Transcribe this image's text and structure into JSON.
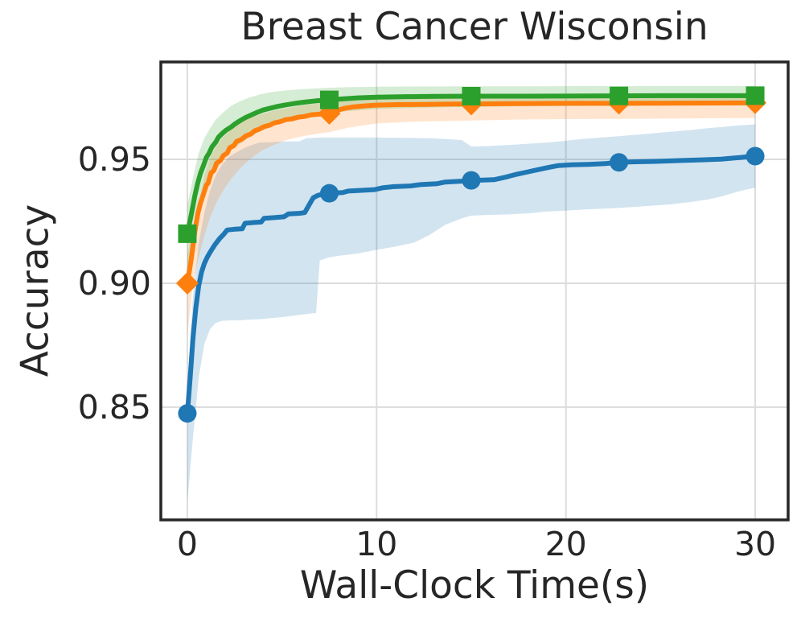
{
  "figure": {
    "background": "#ffffff"
  },
  "chart_data": {
    "type": "line",
    "title": "Breast Cancer Wisconsin",
    "xlabel": "Wall-Clock Time(s)",
    "ylabel": "Accuracy",
    "xlim": [
      -1.4,
      31.74
    ],
    "ylim": [
      0.8045,
      0.9893
    ],
    "grid": true,
    "legend_position": "none",
    "x_ticks": {
      "values": [
        0,
        10,
        20,
        30
      ],
      "labels": [
        "0",
        "10",
        "20",
        "30"
      ]
    },
    "y_ticks": {
      "values": [
        0.85,
        0.9,
        0.95
      ],
      "labels": [
        "0.85",
        "0.90",
        "0.95"
      ]
    },
    "style": {
      "grid_color": "#dcdcdc",
      "spine_color": "#262626",
      "text_color": "#262626",
      "band_opacity": 0.2,
      "line_width": 6
    },
    "series": [
      {
        "name": "blue-circle-series",
        "color": "#1f77b4",
        "marker": "circle",
        "markers": [
          [
            0,
            0.8475
          ],
          [
            7.5,
            0.9363
          ],
          [
            15,
            0.9415
          ],
          [
            22.8,
            0.9488
          ],
          [
            30,
            0.9513
          ]
        ],
        "line": [
          [
            0,
            0.8475
          ],
          [
            0.15,
            0.862
          ],
          [
            0.3,
            0.878
          ],
          [
            0.45,
            0.89
          ],
          [
            0.6,
            0.899
          ],
          [
            0.75,
            0.9045
          ],
          [
            0.9,
            0.908
          ],
          [
            1.05,
            0.9105
          ],
          [
            1.2,
            0.9125
          ],
          [
            1.45,
            0.9155
          ],
          [
            1.7,
            0.918
          ],
          [
            1.95,
            0.92
          ],
          [
            2.1,
            0.9215
          ],
          [
            2.5,
            0.9218
          ],
          [
            2.9,
            0.922
          ],
          [
            3.05,
            0.9242
          ],
          [
            3.5,
            0.9245
          ],
          [
            3.9,
            0.9247
          ],
          [
            4.05,
            0.9262
          ],
          [
            4.6,
            0.9265
          ],
          [
            5.1,
            0.9268
          ],
          [
            5.35,
            0.928
          ],
          [
            5.9,
            0.9282
          ],
          [
            6.2,
            0.9285
          ],
          [
            6.35,
            0.9305
          ],
          [
            6.5,
            0.9325
          ],
          [
            6.65,
            0.9345
          ],
          [
            6.9,
            0.9355
          ],
          [
            7.2,
            0.936
          ],
          [
            7.5,
            0.9363
          ],
          [
            8.2,
            0.9366
          ],
          [
            8.5,
            0.9372
          ],
          [
            9.2,
            0.9375
          ],
          [
            9.9,
            0.9378
          ],
          [
            10.3,
            0.9385
          ],
          [
            10.9,
            0.939
          ],
          [
            11.8,
            0.9393
          ],
          [
            12.3,
            0.9398
          ],
          [
            13.2,
            0.9402
          ],
          [
            13.6,
            0.9408
          ],
          [
            14.5,
            0.9412
          ],
          [
            15,
            0.9415
          ],
          [
            16.2,
            0.9418
          ],
          [
            16.8,
            0.9428
          ],
          [
            17.3,
            0.9438
          ],
          [
            17.9,
            0.9448
          ],
          [
            18.5,
            0.9458
          ],
          [
            19.1,
            0.9468
          ],
          [
            19.6,
            0.9475
          ],
          [
            20.3,
            0.9478
          ],
          [
            21.2,
            0.948
          ],
          [
            22.1,
            0.9483
          ],
          [
            22.8,
            0.9488
          ],
          [
            23.5,
            0.949
          ],
          [
            24.8,
            0.9492
          ],
          [
            26,
            0.9495
          ],
          [
            27.2,
            0.9498
          ],
          [
            28.2,
            0.9501
          ],
          [
            28.8,
            0.9505
          ],
          [
            29.3,
            0.9508
          ],
          [
            29.7,
            0.9512
          ],
          [
            30,
            0.9513
          ]
        ],
        "band": [
          [
            0,
            0.812,
            0.86
          ],
          [
            0.3,
            0.838,
            0.895
          ],
          [
            0.6,
            0.862,
            0.9165
          ],
          [
            0.9,
            0.8755,
            0.9285
          ],
          [
            1.2,
            0.8815,
            0.9375
          ],
          [
            1.5,
            0.884,
            0.9435
          ],
          [
            1.8,
            0.8848,
            0.9475
          ],
          [
            2.2,
            0.885,
            0.951
          ],
          [
            2.7,
            0.885,
            0.9533
          ],
          [
            3.2,
            0.8853,
            0.9553
          ],
          [
            3.8,
            0.8855,
            0.9568
          ],
          [
            4.5,
            0.886,
            0.957
          ],
          [
            5.2,
            0.8865,
            0.9572
          ],
          [
            5.9,
            0.8872,
            0.9572
          ],
          [
            6.3,
            0.8876,
            0.9585
          ],
          [
            6.8,
            0.888,
            0.9587
          ],
          [
            7.0,
            0.9092,
            0.9588
          ],
          [
            7.5,
            0.9105,
            0.9588
          ],
          [
            8.2,
            0.9113,
            0.9588
          ],
          [
            9,
            0.912,
            0.9588
          ],
          [
            10,
            0.9135,
            0.9588
          ],
          [
            11,
            0.9148,
            0.9587
          ],
          [
            12,
            0.9165,
            0.9586
          ],
          [
            12.8,
            0.9195,
            0.9585
          ],
          [
            13.6,
            0.9235,
            0.9582
          ],
          [
            14.5,
            0.9262,
            0.9578
          ],
          [
            15,
            0.9273,
            0.9552
          ],
          [
            16,
            0.9276,
            0.9554
          ],
          [
            17,
            0.9278,
            0.9558
          ],
          [
            18,
            0.9282,
            0.9563
          ],
          [
            19,
            0.929,
            0.9568
          ],
          [
            20,
            0.9293,
            0.9575
          ],
          [
            21,
            0.9298,
            0.9583
          ],
          [
            22.5,
            0.9303,
            0.9592
          ],
          [
            24,
            0.931,
            0.9601
          ],
          [
            25.5,
            0.9318,
            0.9611
          ],
          [
            26.5,
            0.9327,
            0.9618
          ],
          [
            27.5,
            0.9338,
            0.9626
          ],
          [
            28.3,
            0.9352,
            0.9631
          ],
          [
            29,
            0.9368,
            0.9636
          ],
          [
            29.5,
            0.9378,
            0.9639
          ],
          [
            30,
            0.9385,
            0.9641
          ]
        ]
      },
      {
        "name": "orange-diamond-series",
        "color": "#ff7f0e",
        "marker": "diamond",
        "markers": [
          [
            0,
            0.9
          ],
          [
            7.5,
            0.9685
          ],
          [
            15,
            0.9723
          ],
          [
            22.8,
            0.9726
          ],
          [
            30,
            0.9728
          ]
        ],
        "line": [
          [
            0,
            0.9
          ],
          [
            0.2,
            0.9095
          ],
          [
            0.4,
            0.921
          ],
          [
            0.55,
            0.928
          ],
          [
            0.7,
            0.9325
          ],
          [
            0.85,
            0.936
          ],
          [
            1.0,
            0.9395
          ],
          [
            1.1,
            0.9405
          ],
          [
            1.25,
            0.9445
          ],
          [
            1.4,
            0.9455
          ],
          [
            1.55,
            0.9485
          ],
          [
            1.75,
            0.9495
          ],
          [
            1.9,
            0.9515
          ],
          [
            2.1,
            0.9525
          ],
          [
            2.25,
            0.9548
          ],
          [
            2.45,
            0.9555
          ],
          [
            2.6,
            0.9572
          ],
          [
            2.85,
            0.958
          ],
          [
            3.1,
            0.9595
          ],
          [
            3.35,
            0.9602
          ],
          [
            3.55,
            0.9615
          ],
          [
            3.8,
            0.9622
          ],
          [
            4.05,
            0.9632
          ],
          [
            4.35,
            0.9638
          ],
          [
            4.6,
            0.9647
          ],
          [
            4.9,
            0.9652
          ],
          [
            5.2,
            0.966
          ],
          [
            5.5,
            0.9663
          ],
          [
            5.85,
            0.967
          ],
          [
            6.2,
            0.9673
          ],
          [
            6.55,
            0.968
          ],
          [
            6.9,
            0.9682
          ],
          [
            7.2,
            0.9684
          ],
          [
            7.5,
            0.9685
          ],
          [
            7.9,
            0.9697
          ],
          [
            8.3,
            0.9706
          ],
          [
            8.8,
            0.9712
          ],
          [
            9.4,
            0.9716
          ],
          [
            10,
            0.9719
          ],
          [
            11,
            0.9721
          ],
          [
            12.5,
            0.9722
          ],
          [
            14,
            0.9723
          ],
          [
            15,
            0.9723
          ],
          [
            17,
            0.9725
          ],
          [
            20,
            0.9726
          ],
          [
            23,
            0.9726
          ],
          [
            26,
            0.9727
          ],
          [
            30,
            0.9728
          ]
        ],
        "band": [
          [
            0,
            0.879,
            0.9115
          ],
          [
            0.3,
            0.8995,
            0.9225
          ],
          [
            0.6,
            0.9105,
            0.932
          ],
          [
            0.9,
            0.919,
            0.9435
          ],
          [
            1.2,
            0.9265,
            0.9505
          ],
          [
            1.5,
            0.932,
            0.955
          ],
          [
            1.9,
            0.9375,
            0.959
          ],
          [
            2.3,
            0.942,
            0.962
          ],
          [
            2.8,
            0.9465,
            0.9648
          ],
          [
            3.3,
            0.95,
            0.9667
          ],
          [
            3.9,
            0.9533,
            0.9682
          ],
          [
            4.5,
            0.9556,
            0.9695
          ],
          [
            5.2,
            0.9577,
            0.9706
          ],
          [
            6,
            0.9592,
            0.9717
          ],
          [
            7,
            0.9605,
            0.9727
          ],
          [
            7.5,
            0.961,
            0.9732
          ],
          [
            8.5,
            0.9628,
            0.974
          ],
          [
            10,
            0.9645,
            0.9747
          ],
          [
            12,
            0.9652,
            0.975
          ],
          [
            15,
            0.9657,
            0.9752
          ],
          [
            18,
            0.9661,
            0.9753
          ],
          [
            22.5,
            0.9663,
            0.9754
          ],
          [
            26,
            0.9665,
            0.9754
          ],
          [
            30,
            0.9667,
            0.9755
          ]
        ]
      },
      {
        "name": "green-square-series",
        "color": "#2ca02c",
        "marker": "square",
        "markers": [
          [
            0,
            0.92
          ],
          [
            7.5,
            0.974
          ],
          [
            15,
            0.9755
          ],
          [
            22.8,
            0.9756
          ],
          [
            30,
            0.9757
          ]
        ],
        "line": [
          [
            0,
            0.92
          ],
          [
            0.2,
            0.9275
          ],
          [
            0.4,
            0.9355
          ],
          [
            0.55,
            0.9405
          ],
          [
            0.7,
            0.9445
          ],
          [
            0.85,
            0.9475
          ],
          [
            1.0,
            0.9507
          ],
          [
            1.15,
            0.9525
          ],
          [
            1.3,
            0.955
          ],
          [
            1.5,
            0.957
          ],
          [
            1.65,
            0.959
          ],
          [
            1.85,
            0.9605
          ],
          [
            2.05,
            0.9618
          ],
          [
            2.3,
            0.963
          ],
          [
            2.55,
            0.9645
          ],
          [
            2.8,
            0.9657
          ],
          [
            3.1,
            0.967
          ],
          [
            3.4,
            0.968
          ],
          [
            3.7,
            0.969
          ],
          [
            4.0,
            0.9699
          ],
          [
            4.4,
            0.9707
          ],
          [
            4.8,
            0.9714
          ],
          [
            5.2,
            0.972
          ],
          [
            5.7,
            0.9726
          ],
          [
            6.2,
            0.9731
          ],
          [
            6.8,
            0.9736
          ],
          [
            7.5,
            0.974
          ],
          [
            8.2,
            0.9744
          ],
          [
            9.0,
            0.9748
          ],
          [
            10,
            0.9751
          ],
          [
            11.5,
            0.9753
          ],
          [
            13,
            0.9754
          ],
          [
            15,
            0.9755
          ],
          [
            18,
            0.9755
          ],
          [
            21,
            0.9756
          ],
          [
            25,
            0.9757
          ],
          [
            30,
            0.9757
          ]
        ],
        "band": [
          [
            0,
            0.9045,
            0.9315
          ],
          [
            0.3,
            0.9165,
            0.9425
          ],
          [
            0.6,
            0.9285,
            0.9525
          ],
          [
            0.9,
            0.936,
            0.9585
          ],
          [
            1.2,
            0.941,
            0.9625
          ],
          [
            1.5,
            0.9455,
            0.966
          ],
          [
            1.9,
            0.95,
            0.969
          ],
          [
            2.3,
            0.9535,
            0.9715
          ],
          [
            2.8,
            0.9565,
            0.9735
          ],
          [
            3.3,
            0.959,
            0.975
          ],
          [
            3.9,
            0.9615,
            0.9763
          ],
          [
            4.5,
            0.9635,
            0.9772
          ],
          [
            5.2,
            0.9655,
            0.9778
          ],
          [
            6,
            0.967,
            0.9783
          ],
          [
            7,
            0.9682,
            0.9787
          ],
          [
            7.5,
            0.9687,
            0.9789
          ],
          [
            8.5,
            0.9695,
            0.9791
          ],
          [
            10,
            0.9703,
            0.9793
          ],
          [
            12,
            0.9708,
            0.9794
          ],
          [
            15,
            0.9712,
            0.9795
          ],
          [
            18,
            0.9714,
            0.9795
          ],
          [
            22.5,
            0.9716,
            0.9796
          ],
          [
            26,
            0.9717,
            0.9796
          ],
          [
            30,
            0.9717,
            0.9796
          ]
        ]
      }
    ]
  }
}
